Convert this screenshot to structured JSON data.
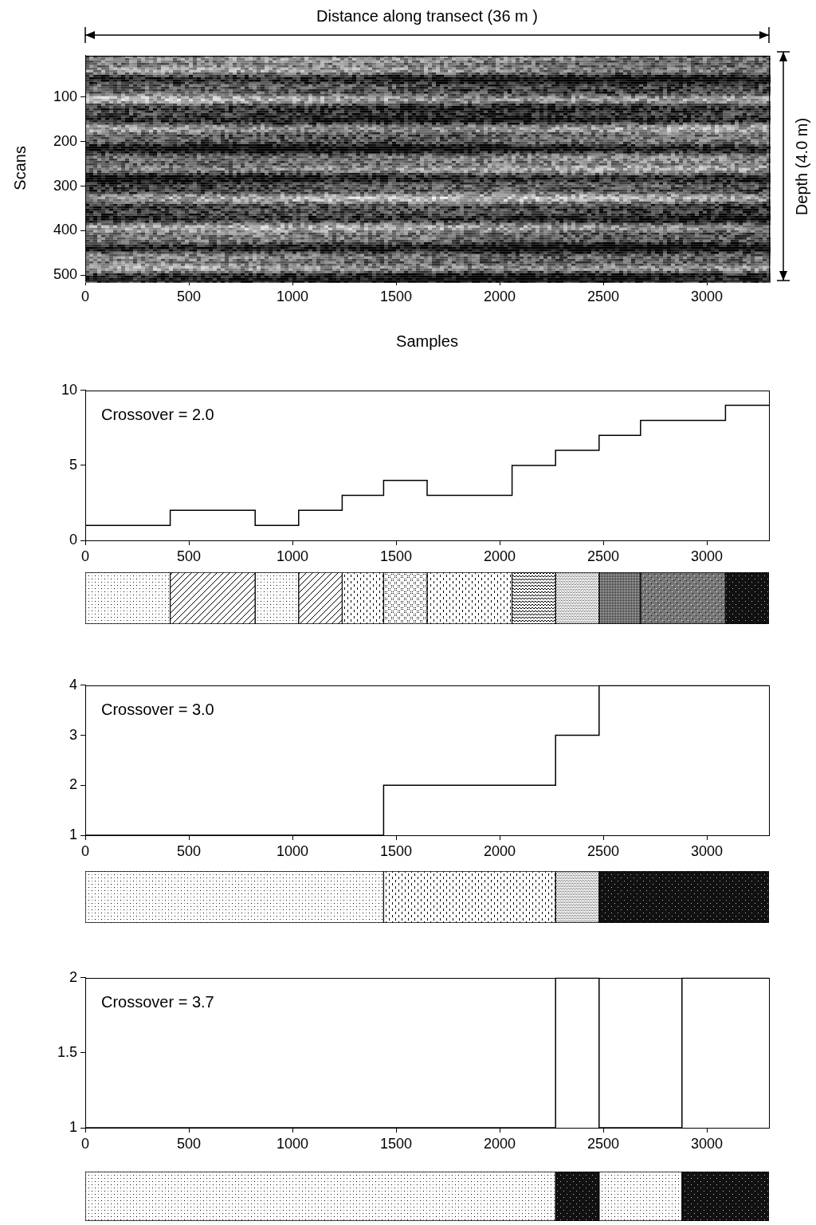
{
  "chart_data": [
    {
      "type": "image",
      "annotations": [
        "Distance along transect (36 m )",
        "Depth (4.0 m)"
      ],
      "x_label": "Samples",
      "y_label": "Scans",
      "xlim": [
        0,
        3300
      ],
      "ylim": [
        7,
        512
      ],
      "xticks": [
        0,
        500,
        1000,
        1500,
        2000,
        2500,
        3000
      ],
      "yticks": [
        100,
        200,
        300,
        400,
        500
      ],
      "grid": false
    },
    {
      "type": "line",
      "title": "Crossover = 2.0",
      "line_style": "steps",
      "x": [
        0,
        410,
        820,
        1030,
        1240,
        1440,
        1650,
        2060,
        2270,
        2480,
        2680,
        3090,
        3300
      ],
      "values": [
        1,
        2,
        1,
        2,
        3,
        4,
        3,
        5,
        6,
        7,
        8,
        9,
        9
      ],
      "xlim": [
        0,
        3300
      ],
      "ylim": [
        0,
        10
      ],
      "xticks": [
        0,
        500,
        1000,
        1500,
        2000,
        2500,
        3000
      ],
      "yticks": [
        0,
        5,
        10
      ],
      "grid": false
    },
    {
      "type": "line",
      "title": "Crossover = 3.0",
      "line_style": "steps",
      "x": [
        0,
        1440,
        2270,
        2480,
        3300
      ],
      "values": [
        1,
        2,
        3,
        4,
        4
      ],
      "xlim": [
        0,
        3300
      ],
      "ylim": [
        1,
        4
      ],
      "xticks": [
        0,
        500,
        1000,
        1500,
        2000,
        2500,
        3000
      ],
      "yticks": [
        1,
        2,
        3,
        4
      ],
      "grid": false
    },
    {
      "type": "line",
      "title": "Crossover = 3.7",
      "line_style": "steps",
      "x": [
        0,
        2270,
        2480,
        2880,
        3300
      ],
      "values": [
        1,
        2,
        1,
        2,
        2
      ],
      "xlim": [
        0,
        3300
      ],
      "ylim": [
        1,
        2
      ],
      "xticks": [
        0,
        500,
        1000,
        1500,
        2000,
        2500,
        3000
      ],
      "yticks": [
        1,
        1.5,
        2
      ],
      "grid": false
    }
  ]
}
